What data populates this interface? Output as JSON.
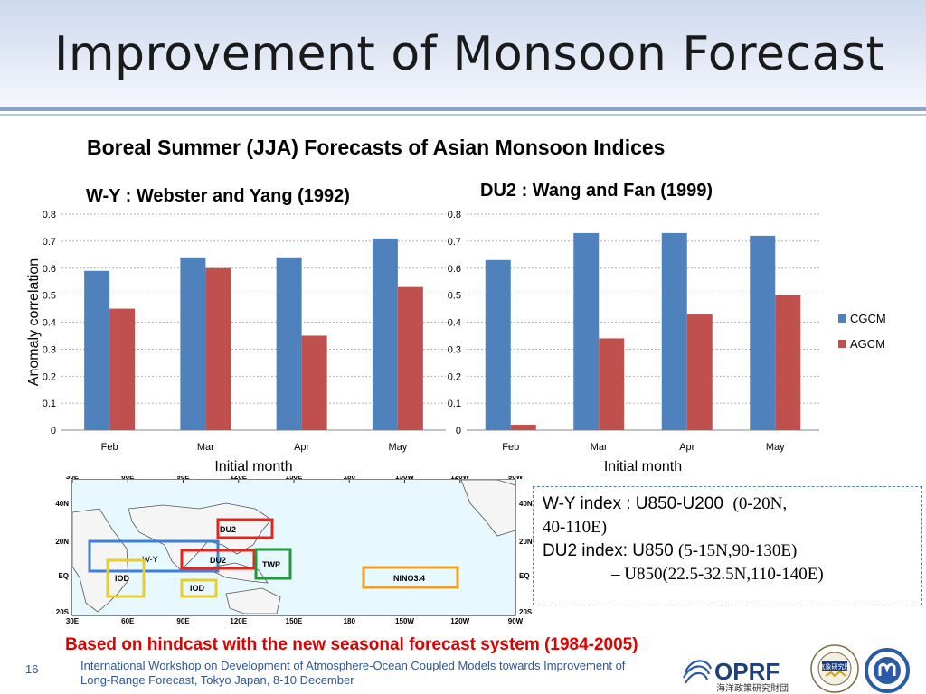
{
  "slide": {
    "title": "Improvement of Monsoon Forecast",
    "subtitle": "Boreal Summer (JJA) Forecasts of Asian Monsoon Indices",
    "page_number": "16",
    "note": "Based on hindcast with the new seasonal forecast system   (1984-2005)",
    "footer_line1": "International Workshop on Development of Atmosphere-Ocean Coupled Models towards Improvement of",
    "footer_line2": "Long-Range Forecast, Tokyo Japan, 8-10 December",
    "logo_text": "OPRF",
    "logo_subtext": "海洋政策研究財団",
    "seal_text": "気象研究所"
  },
  "colors": {
    "cgcm": "#4f81bd",
    "agcm": "#c0504d",
    "note": "#e00000",
    "accent": "#2f5597"
  },
  "chart_data": [
    {
      "type": "bar",
      "title": "W-Y : Webster and Yang (1992)",
      "ylabel": "Anomaly correlation",
      "xlabel": "Initial month",
      "categories": [
        "Feb",
        "Mar",
        "Apr",
        "May"
      ],
      "ylim": [
        0,
        0.8
      ],
      "yticks": [
        "0",
        "0.1",
        "0.2",
        "0.3",
        "0.4",
        "0.5",
        "0.6",
        "0.7",
        "0.8"
      ],
      "grid": true,
      "series": [
        {
          "name": "CGCM",
          "values": [
            0.59,
            0.64,
            0.64,
            0.71
          ]
        },
        {
          "name": "AGCM",
          "values": [
            0.45,
            0.6,
            0.35,
            0.53
          ]
        }
      ]
    },
    {
      "type": "bar",
      "title": "DU2 : Wang and Fan (1999)",
      "ylabel": "",
      "xlabel": "Initial month",
      "categories": [
        "Feb",
        "Mar",
        "Apr",
        "May"
      ],
      "ylim": [
        0,
        0.8
      ],
      "yticks": [
        "0",
        "0.1",
        "0.2",
        "0.3",
        "0.4",
        "0.5",
        "0.6",
        "0.7",
        "0.8"
      ],
      "grid": true,
      "legend": "right",
      "series": [
        {
          "name": "CGCM",
          "values": [
            0.63,
            0.73,
            0.73,
            0.72
          ]
        },
        {
          "name": "AGCM",
          "values": [
            0.02,
            0.34,
            0.43,
            0.5
          ]
        }
      ]
    }
  ],
  "map": {
    "lon_labels": [
      "30E",
      "60E",
      "90E",
      "120E",
      "150E",
      "180",
      "150W",
      "120W",
      "90W"
    ],
    "lat_labels": [
      "40N",
      "20N",
      "EQ",
      "20S"
    ],
    "regions": [
      {
        "label": "DU2",
        "color": "#e8231a"
      },
      {
        "label": "W-Y",
        "color": "#3f7fd8"
      },
      {
        "label": "DU2",
        "color": "#e8231a"
      },
      {
        "label": "TWP",
        "color": "#1f9a3a"
      },
      {
        "label": "IOD",
        "color": "#e6cf2a"
      },
      {
        "label": "IOD",
        "color": "#e6cf2a"
      },
      {
        "label": "NINO3.4",
        "color": "#f0a020"
      }
    ]
  },
  "info": {
    "wy_label": "W-Y index : U850-U200",
    "wy_region_a": "(0-20N,",
    "wy_region_b": "40-110E)",
    "du2_label": "DU2 index: U850",
    "du2_region": "(5-15N,90-130E)",
    "du2_minus": "– U850(22.5-32.5N,110-140E)"
  }
}
